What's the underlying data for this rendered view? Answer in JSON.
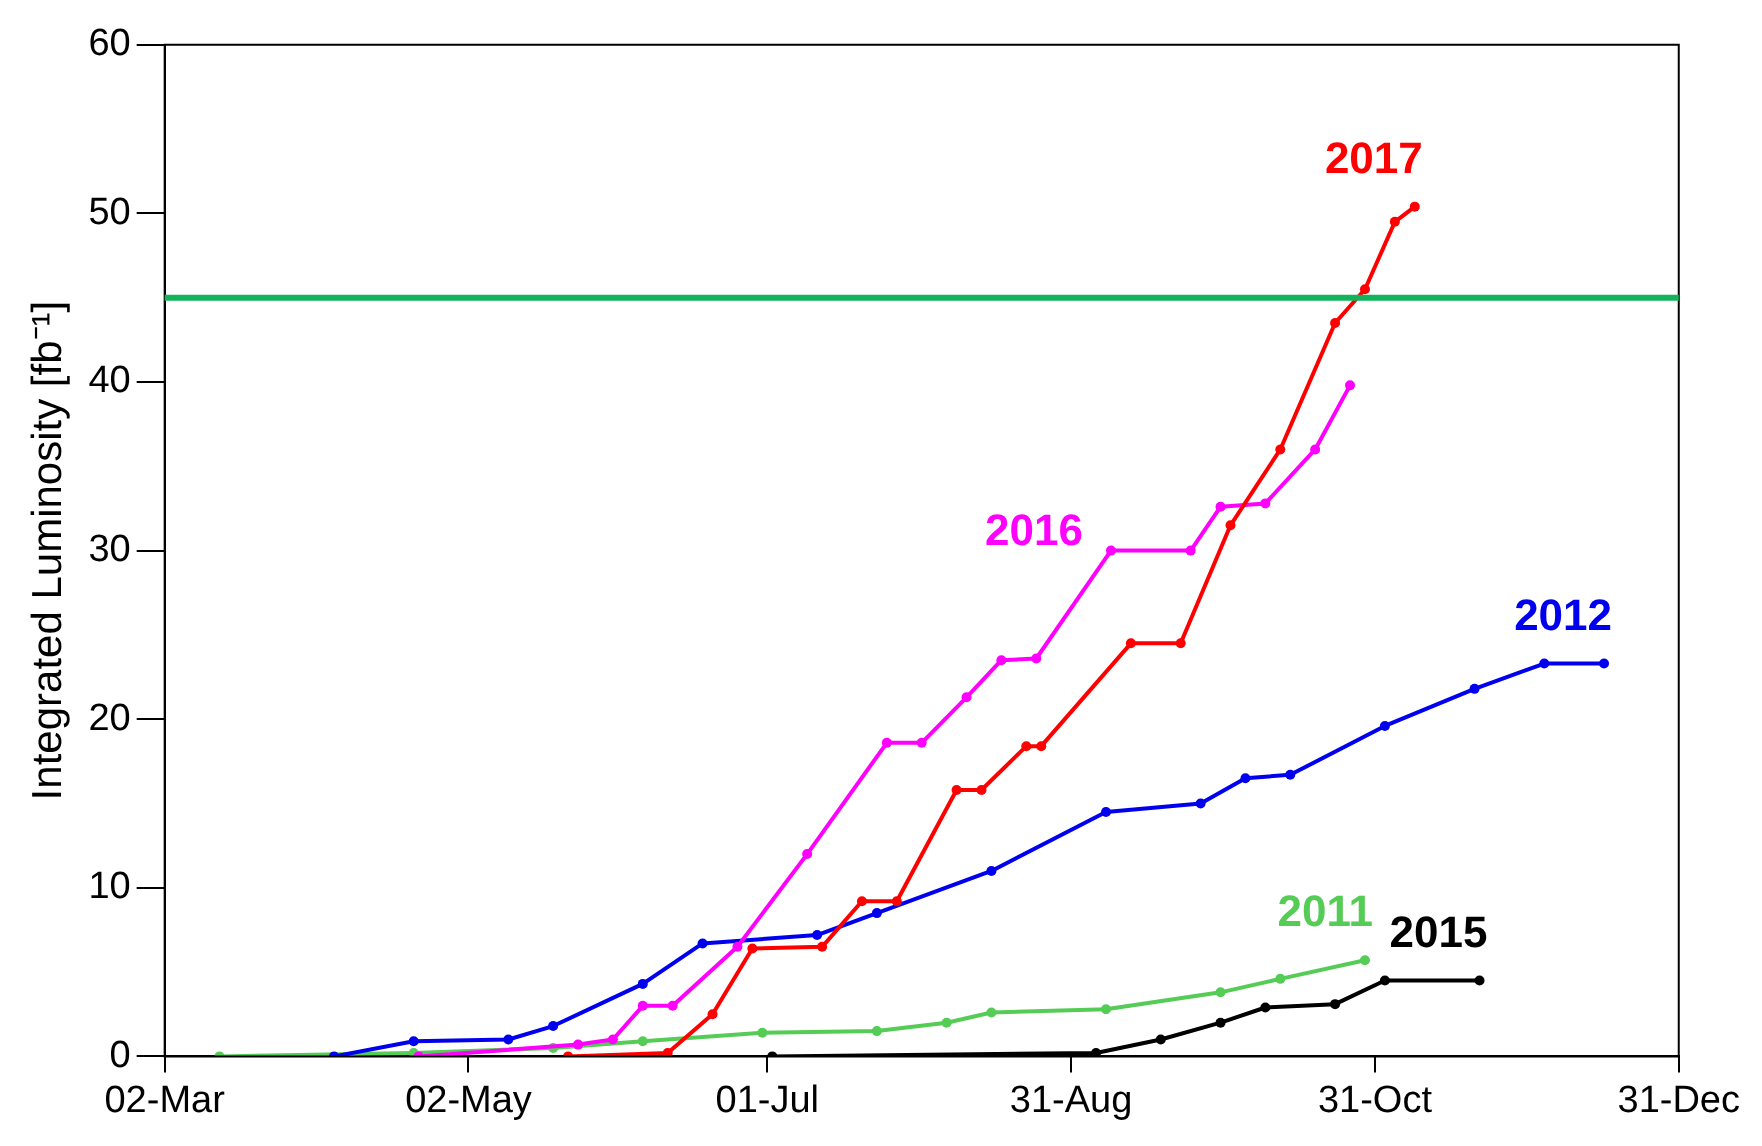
{
  "chart_data": {
    "type": "line",
    "ylabel": "Integrated Luminosity [fb⁻¹]",
    "xlim": [
      "--03-02",
      "--12-31"
    ],
    "xticks": [
      {
        "value": "--03-02",
        "label": "02-Mar"
      },
      {
        "value": "--05-02",
        "label": "02-May"
      },
      {
        "value": "--07-01",
        "label": "01-Jul"
      },
      {
        "value": "--08-31",
        "label": "31-Aug"
      },
      {
        "value": "--10-31",
        "label": "31-Oct"
      },
      {
        "value": "--12-31",
        "label": "31-Dec"
      }
    ],
    "ylim": [
      0,
      60
    ],
    "yticks": [
      0,
      10,
      20,
      30,
      40,
      50,
      60
    ],
    "grid": false,
    "legend": false,
    "marker": "circle",
    "line_style": "solid",
    "ref_lines": [
      {
        "axis": "y",
        "value": 45,
        "color": "#13b35b"
      }
    ],
    "series": [
      {
        "name": "2011",
        "color": "#55cc55",
        "x": [
          "--03-13",
          "--04-21",
          "--05-19",
          "--06-06",
          "--06-30",
          "--07-23",
          "--08-06",
          "--08-15",
          "--09-07",
          "--09-30",
          "--10-12",
          "--10-29"
        ],
        "values": [
          0,
          0.2,
          0.5,
          0.9,
          1.4,
          1.5,
          2.0,
          2.6,
          2.8,
          3.8,
          4.6,
          5.7
        ]
      },
      {
        "name": "2012",
        "color": "#0000ee",
        "x": [
          "--04-05",
          "--04-21",
          "--05-10",
          "--05-19",
          "--06-06",
          "--06-18",
          "--07-11",
          "--07-23",
          "--08-15",
          "--09-07",
          "--09-26",
          "--10-05",
          "--10-14",
          "--11-02",
          "--11-20",
          "--12-04",
          "--12-16"
        ],
        "values": [
          0,
          0.9,
          1.0,
          1.8,
          4.3,
          6.7,
          7.2,
          8.5,
          11.0,
          14.5,
          15.0,
          16.5,
          16.7,
          19.6,
          21.8,
          23.3,
          23.3
        ]
      },
      {
        "name": "2015",
        "color": "#000000",
        "x": [
          "--07-02",
          "--09-05",
          "--09-18",
          "--09-30",
          "--10-09",
          "--10-23",
          "--11-02",
          "--11-21"
        ],
        "values": [
          0,
          0.2,
          1.0,
          2.0,
          2.9,
          3.1,
          4.5,
          4.5
        ]
      },
      {
        "name": "2016",
        "color": "#ff00ff",
        "x": [
          "--04-22",
          "--05-24",
          "--05-31",
          "--06-06",
          "--06-12",
          "--06-25",
          "--07-09",
          "--07-25",
          "--08-01",
          "--08-10",
          "--08-17",
          "--08-24",
          "--09-08",
          "--09-24",
          "--09-30",
          "--10-09",
          "--10-19",
          "--10-26"
        ],
        "values": [
          0,
          0.7,
          1.0,
          3.0,
          3.0,
          6.5,
          12,
          18.6,
          18.6,
          21.3,
          23.5,
          23.6,
          30.0,
          30.0,
          32.6,
          32.8,
          36,
          39.8
        ]
      },
      {
        "name": "2017",
        "color": "#ff0000",
        "x": [
          "--05-22",
          "--06-11",
          "--06-20",
          "--06-28",
          "--07-12",
          "--07-20",
          "--07-27",
          "--08-08",
          "--08-13",
          "--08-22",
          "--08-25",
          "--09-12",
          "--09-22",
          "--10-02",
          "--10-12",
          "--10-23",
          "--10-29",
          "--11-04",
          "--11-08"
        ],
        "values": [
          0,
          0.2,
          2.5,
          6.4,
          6.5,
          9.2,
          9.2,
          15.8,
          15.8,
          18.4,
          18.4,
          24.5,
          24.5,
          31.5,
          36,
          43.5,
          45.5,
          49.5,
          50.4
        ]
      }
    ]
  }
}
